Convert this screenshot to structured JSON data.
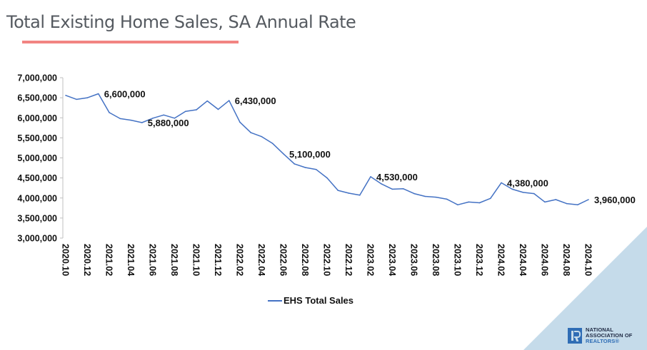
{
  "page": {
    "title": "Total Existing Home Sales, SA Annual Rate",
    "accent_color": "#f28482",
    "corner_color": "#c5dbea"
  },
  "logo": {
    "line1": "NATIONAL",
    "line2": "ASSOCIATION OF",
    "line3": "REALTORS®"
  },
  "chart_data": {
    "type": "line",
    "title": "Total Existing Home Sales, SA Annual Rate",
    "xlabel": "",
    "ylabel": "",
    "ylim": [
      3000000,
      7000000
    ],
    "yticks": [
      3000000,
      3500000,
      4000000,
      4500000,
      5000000,
      5500000,
      6000000,
      6500000,
      7000000
    ],
    "ytick_labels": [
      "3,000,000",
      "3,500,000",
      "4,000,000",
      "4,500,000",
      "5,000,000",
      "5,500,000",
      "6,000,000",
      "6,500,000",
      "7,000,000"
    ],
    "grid": false,
    "legend": "bottom-center",
    "x": [
      "2020.10",
      "2020.11",
      "2020.12",
      "2021.01",
      "2021.02",
      "2021.03",
      "2021.04",
      "2021.05",
      "2021.06",
      "2021.07",
      "2021.08",
      "2021.09",
      "2021.10",
      "2021.11",
      "2021.12",
      "2022.01",
      "2022.02",
      "2022.03",
      "2022.04",
      "2022.05",
      "2022.06",
      "2022.07",
      "2022.08",
      "2022.09",
      "2022.10",
      "2022.11",
      "2022.12",
      "2023.01",
      "2023.02",
      "2023.03",
      "2023.04",
      "2023.05",
      "2023.06",
      "2023.07",
      "2023.08",
      "2023.09",
      "2023.10",
      "2023.11",
      "2023.12",
      "2024.01",
      "2024.02",
      "2024.03",
      "2024.04",
      "2024.05",
      "2024.06",
      "2024.07",
      "2024.08",
      "2024.09",
      "2024.10"
    ],
    "xtick_labels": [
      "2020.10",
      "2020.12",
      "2021.02",
      "2021.04",
      "2021.06",
      "2021.08",
      "2021.10",
      "2021.12",
      "2022.02",
      "2022.04",
      "2022.06",
      "2022.08",
      "2022.10",
      "2022.12",
      "2023.02",
      "2023.04",
      "2023.06",
      "2023.08",
      "2023.10",
      "2023.12",
      "2024.02",
      "2024.04",
      "2024.06",
      "2024.08",
      "2024.10"
    ],
    "series": [
      {
        "name": "EHS Total Sales",
        "color": "#4472c4",
        "values": [
          6560000,
          6460000,
          6500000,
          6600000,
          6130000,
          5980000,
          5940000,
          5880000,
          5990000,
          6070000,
          5990000,
          6160000,
          6200000,
          6420000,
          6210000,
          6430000,
          5890000,
          5630000,
          5530000,
          5360000,
          5100000,
          4850000,
          4760000,
          4710000,
          4500000,
          4190000,
          4120000,
          4070000,
          4530000,
          4350000,
          4220000,
          4230000,
          4110000,
          4040000,
          4020000,
          3970000,
          3830000,
          3900000,
          3880000,
          3990000,
          4380000,
          4220000,
          4140000,
          4110000,
          3900000,
          3960000,
          3860000,
          3830000,
          3960000
        ]
      }
    ],
    "annotations": [
      {
        "x": "2021.01",
        "label": "6,600,000"
      },
      {
        "x": "2021.05",
        "label": "5,880,000"
      },
      {
        "x": "2022.01",
        "label": "6,430,000"
      },
      {
        "x": "2022.06",
        "label": "5,100,000"
      },
      {
        "x": "2023.02",
        "label": "4,530,000"
      },
      {
        "x": "2024.02",
        "label": "4,380,000"
      },
      {
        "x": "2024.10",
        "label": "3,960,000"
      }
    ]
  }
}
